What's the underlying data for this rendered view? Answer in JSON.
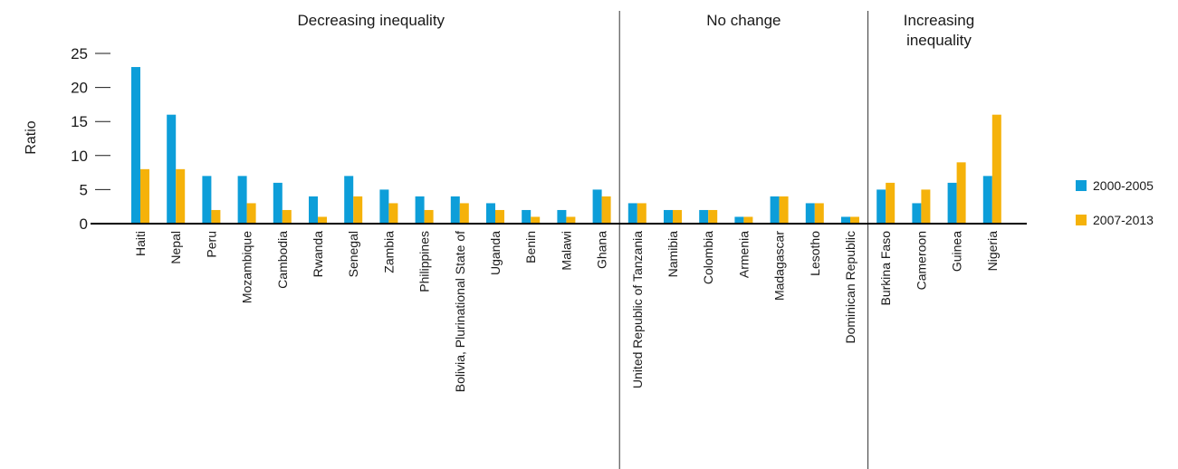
{
  "chart_data": {
    "type": "bar",
    "ylabel": "Ratio",
    "ylim": [
      0,
      25
    ],
    "yticks": [
      0,
      5,
      10,
      15,
      20,
      25
    ],
    "grid": false,
    "legend_position": "right",
    "categories": [
      "Haiti",
      "Nepal",
      "Peru",
      "Mozambique",
      "Cambodia",
      "Rwanda",
      "Senegal",
      "Zambia",
      "Philippines",
      "Bolivia, Plurinational State of",
      "Uganda",
      "Benin",
      "Malawi",
      "Ghana",
      "United Republic of Tanzania",
      "Namibia",
      "Colombia",
      "Armenia",
      "Madagascar",
      "Lesotho",
      "Dominican Republic",
      "Burkina Faso",
      "Cameroon",
      "Guinea",
      "Nigeria"
    ],
    "series": [
      {
        "name": "2000-2005",
        "color": "#0d9ed9",
        "values": [
          23,
          16,
          7,
          7,
          6,
          4,
          7,
          5,
          4,
          4,
          3,
          2,
          2,
          5,
          3,
          2,
          2,
          1,
          4,
          3,
          1,
          5,
          3,
          6,
          7
        ]
      },
      {
        "name": "2007-2013",
        "color": "#f5b20a",
        "values": [
          8,
          8,
          2,
          3,
          2,
          1,
          4,
          3,
          2,
          3,
          2,
          1,
          1,
          4,
          3,
          2,
          2,
          1,
          4,
          3,
          1,
          6,
          5,
          9,
          16
        ]
      }
    ],
    "groups": [
      {
        "label_lines": [
          "Decreasing inequality"
        ],
        "start": 0,
        "end": 13
      },
      {
        "label_lines": [
          "No change"
        ],
        "start": 14,
        "end": 20
      },
      {
        "label_lines": [
          "Increasing",
          "inequality"
        ],
        "start": 21,
        "end": 24
      }
    ]
  }
}
